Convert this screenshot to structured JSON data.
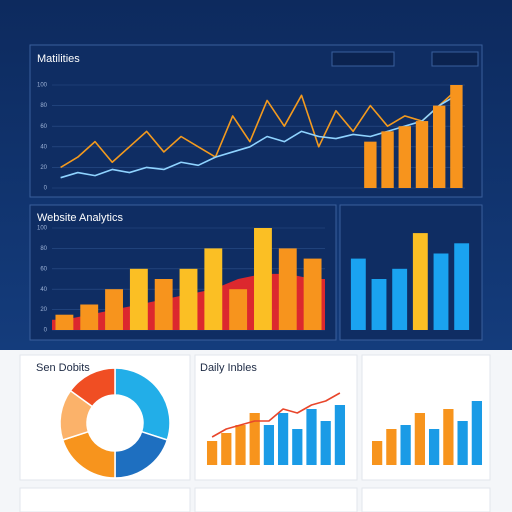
{
  "chart_data": [
    {
      "type": "line",
      "title": "Matilities",
      "ylim": [
        0,
        100
      ],
      "yticks": [
        0,
        20,
        40,
        60,
        80,
        100
      ],
      "grid": true,
      "series": [
        {
          "type": "line",
          "color": "#f39a1e",
          "values": [
            20,
            30,
            45,
            25,
            40,
            55,
            35,
            50,
            40,
            30,
            70,
            45,
            85,
            60,
            90,
            40,
            75,
            55,
            80,
            60,
            70,
            65,
            80,
            95
          ]
        },
        {
          "type": "line",
          "color": "#8fd3ff",
          "values": [
            10,
            15,
            12,
            18,
            15,
            20,
            18,
            25,
            22,
            30,
            35,
            40,
            50,
            45,
            55,
            50,
            48,
            52,
            50,
            55,
            60,
            65,
            80,
            90
          ]
        },
        {
          "type": "bar",
          "color": "#f7941d",
          "values": [
            null,
            null,
            null,
            null,
            null,
            null,
            null,
            null,
            null,
            null,
            null,
            null,
            null,
            null,
            null,
            null,
            null,
            null,
            45,
            55,
            60,
            65,
            80,
            100
          ]
        }
      ]
    },
    {
      "type": "bar",
      "title": "Website Analytics",
      "ylim": [
        0,
        100
      ],
      "yticks": [
        0,
        20,
        40,
        60,
        80,
        100
      ],
      "grid": true,
      "series": [
        {
          "type": "area",
          "color": "#e8282b",
          "values": [
            10,
            15,
            20,
            25,
            30,
            35,
            40,
            50,
            55,
            55,
            50
          ]
        },
        {
          "type": "bar",
          "colors": [
            "#f7941d",
            "#f7941d",
            "#f7941d",
            "#fbbf24",
            "#f7941d",
            "#fbbf24",
            "#fbbf24",
            "#f7941d",
            "#fbbf24",
            "#f7941d",
            "#f7941d"
          ],
          "values": [
            15,
            25,
            40,
            60,
            50,
            60,
            80,
            40,
            100,
            80,
            70
          ]
        }
      ]
    },
    {
      "type": "bar",
      "ylim": [
        0,
        100
      ],
      "grid": false,
      "series": [
        {
          "type": "bar",
          "colors": [
            "#1aa3f0",
            "#1aa3f0",
            "#1aa3f0",
            "#fbbf24",
            "#1aa3f0",
            "#1aa3f0"
          ],
          "values": [
            70,
            50,
            60,
            95,
            75,
            85
          ]
        }
      ]
    },
    {
      "type": "pie",
      "title": "Sen Dobits",
      "values": [
        30,
        20,
        20,
        15,
        15
      ],
      "colors": [
        "#22aee8",
        "#1e6fc0",
        "#f7941d",
        "#fbb26a",
        "#f04e23"
      ]
    },
    {
      "type": "bar",
      "title": "Daily Inbles",
      "ylim": [
        0,
        100
      ],
      "grid": false,
      "series": [
        {
          "type": "bar",
          "colors": [
            "#f7941d",
            "#f7941d",
            "#f7941d",
            "#f7941d",
            "#1a9be6",
            "#1a9be6",
            "#1a9be6",
            "#1a9be6",
            "#1a9be6",
            "#1a9be6"
          ],
          "values": [
            30,
            40,
            50,
            65,
            50,
            65,
            45,
            70,
            55,
            75
          ]
        },
        {
          "type": "line",
          "color": "#e8462b",
          "values": [
            35,
            45,
            50,
            55,
            55,
            70,
            65,
            75,
            80,
            90
          ]
        }
      ]
    },
    {
      "type": "bar",
      "ylim": [
        0,
        100
      ],
      "grid": false,
      "series": [
        {
          "type": "bar",
          "colors": [
            "#f7941d",
            "#f7941d",
            "#1a9be6",
            "#f7941d",
            "#1a9be6",
            "#f7941d",
            "#1a9be6",
            "#1a9be6"
          ],
          "values": [
            30,
            45,
            50,
            65,
            45,
            70,
            55,
            80
          ]
        }
      ]
    }
  ]
}
